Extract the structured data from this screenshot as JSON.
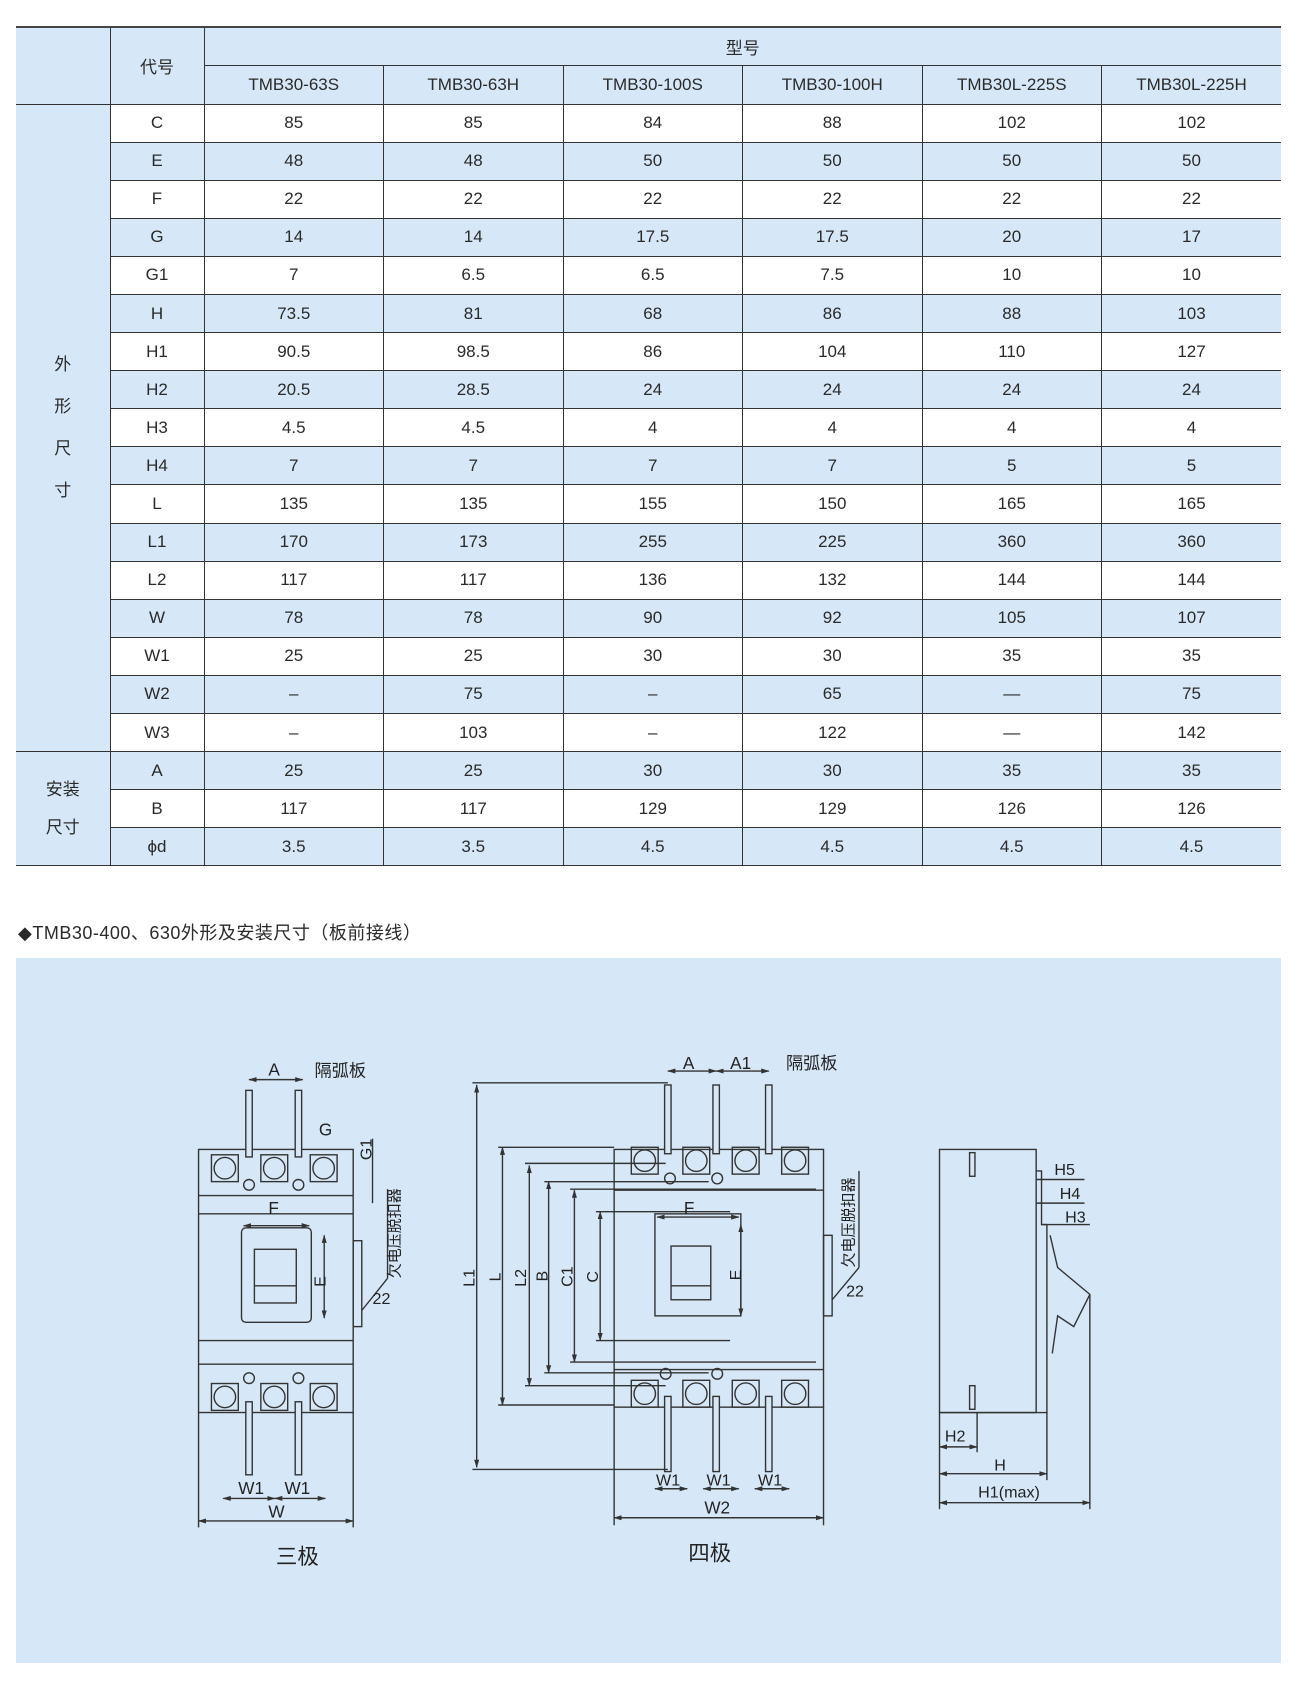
{
  "table": {
    "code_header": "代号",
    "model_header": "型号",
    "models": [
      "TMB30-63S",
      "TMB30-63H",
      "TMB30-100S",
      "TMB30-100H",
      "TMB30L-225S",
      "TMB30L-225H"
    ],
    "groups": [
      {
        "label": "外形尺寸",
        "rows": 17
      },
      {
        "label": "安装尺寸",
        "rows": 3
      }
    ],
    "rows": [
      {
        "code": "C",
        "values": [
          "85",
          "85",
          "84",
          "88",
          "102",
          "102"
        ]
      },
      {
        "code": "E",
        "values": [
          "48",
          "48",
          "50",
          "50",
          "50",
          "50"
        ]
      },
      {
        "code": "F",
        "values": [
          "22",
          "22",
          "22",
          "22",
          "22",
          "22"
        ]
      },
      {
        "code": "G",
        "values": [
          "14",
          "14",
          "17.5",
          "17.5",
          "20",
          "17"
        ]
      },
      {
        "code": "G1",
        "values": [
          "7",
          "6.5",
          "6.5",
          "7.5",
          "10",
          "10"
        ]
      },
      {
        "code": "H",
        "values": [
          "73.5",
          "81",
          "68",
          "86",
          "88",
          "103"
        ]
      },
      {
        "code": "H1",
        "values": [
          "90.5",
          "98.5",
          "86",
          "104",
          "110",
          "127"
        ]
      },
      {
        "code": "H2",
        "values": [
          "20.5",
          "28.5",
          "24",
          "24",
          "24",
          "24"
        ]
      },
      {
        "code": "H3",
        "values": [
          "4.5",
          "4.5",
          "4",
          "4",
          "4",
          "4"
        ]
      },
      {
        "code": "H4",
        "values": [
          "7",
          "7",
          "7",
          "7",
          "5",
          "5"
        ]
      },
      {
        "code": "L",
        "values": [
          "135",
          "135",
          "155",
          "150",
          "165",
          "165"
        ]
      },
      {
        "code": "L1",
        "values": [
          "170",
          "173",
          "255",
          "225",
          "360",
          "360"
        ]
      },
      {
        "code": "L2",
        "values": [
          "117",
          "117",
          "136",
          "132",
          "144",
          "144"
        ]
      },
      {
        "code": "W",
        "values": [
          "78",
          "78",
          "90",
          "92",
          "105",
          "107"
        ]
      },
      {
        "code": "W1",
        "values": [
          "25",
          "25",
          "30",
          "30",
          "35",
          "35"
        ]
      },
      {
        "code": "W2",
        "values": [
          "–",
          "75",
          "–",
          "65",
          "—",
          "75"
        ]
      },
      {
        "code": "W3",
        "values": [
          "–",
          "103",
          "–",
          "122",
          "—",
          "142"
        ]
      },
      {
        "code": "A",
        "values": [
          "25",
          "25",
          "30",
          "30",
          "35",
          "35"
        ]
      },
      {
        "code": "B",
        "values": [
          "117",
          "117",
          "129",
          "129",
          "126",
          "126"
        ]
      },
      {
        "code": "ϕd",
        "values": [
          "3.5",
          "3.5",
          "4.5",
          "4.5",
          "4.5",
          "4.5"
        ]
      }
    ]
  },
  "section_title": "◆TMB30-400、630外形及安装尺寸（板前接线）",
  "diagram": {
    "three_pole": {
      "caption": "三极",
      "A": "A",
      "barrier": "隔弧板",
      "G": "G",
      "G1": "G1",
      "F": "F",
      "E": "E",
      "uvr": "欠电压脱扣器",
      "d22": "22",
      "W1a": "W1",
      "W1b": "W1",
      "W": "W"
    },
    "four_pole": {
      "caption": "四极",
      "A": "A",
      "A1": "A1",
      "barrier": "隔弧板",
      "F": "F",
      "E": "E",
      "uvr": "欠电压脱扣器",
      "d22": "22",
      "L1": "L1",
      "L": "L",
      "L2": "L2",
      "B": "B",
      "C1": "C1",
      "C": "C",
      "W1a": "W1",
      "W1b": "W1",
      "W1c": "W1",
      "W2": "W2"
    },
    "side": {
      "H5": "H5",
      "H4": "H4",
      "H3": "H3",
      "H2": "H2",
      "H": "H",
      "H1": "H1(max)"
    }
  },
  "colors": {
    "panel": "#d6e8f7",
    "line": "#333333"
  }
}
